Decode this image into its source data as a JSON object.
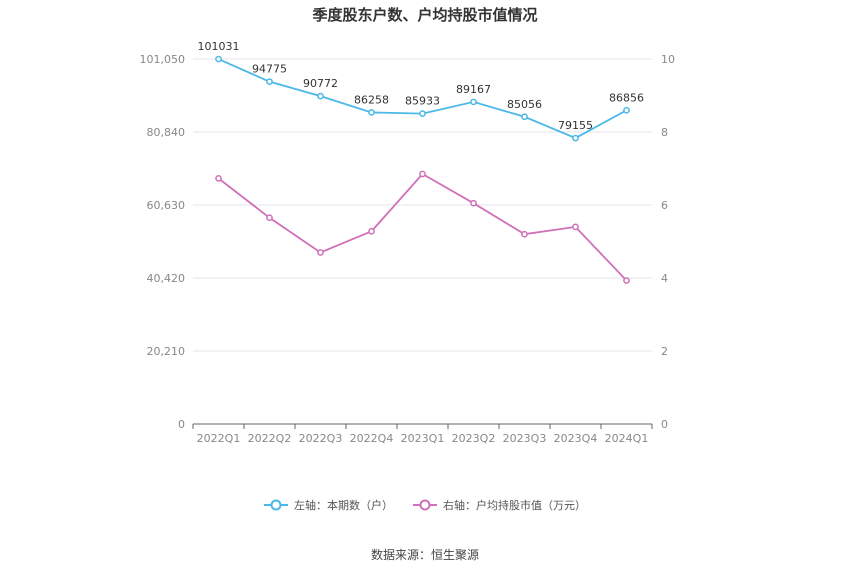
{
  "title": "季度股东户数、户均持股市值情况",
  "source": "数据来源：恒生聚源",
  "legend": [
    {
      "label": "左轴：本期数（户）",
      "color": "#4ab8e8"
    },
    {
      "label": "右轴：户均持股市值（万元）",
      "color": "#d070b8"
    }
  ],
  "chart_data": {
    "type": "line",
    "categories": [
      "2022Q1",
      "2022Q2",
      "2022Q3",
      "2022Q4",
      "2023Q1",
      "2023Q2",
      "2023Q3",
      "2023Q4",
      "2024Q1"
    ],
    "left_axis": {
      "min": 0,
      "max": 101050,
      "ticks": [
        "0",
        "20,210",
        "40,420",
        "60,630",
        "80,840",
        "101,050"
      ]
    },
    "right_axis": {
      "min": 0,
      "max": 10,
      "ticks": [
        "0",
        "2",
        "4",
        "6",
        "8",
        "10"
      ]
    },
    "grid": true,
    "series": [
      {
        "name": "左轴：本期数（户）",
        "axis": "left",
        "color": "#4ab8e8",
        "values": [
          101031,
          94775,
          90772,
          86258,
          85933,
          89167,
          85056,
          79155,
          86856
        ],
        "labels": [
          "101031",
          "94775",
          "90772",
          "86258",
          "85933",
          "89167",
          "85056",
          "79155",
          "86856"
        ]
      },
      {
        "name": "右轴：户均持股市值（万元）",
        "axis": "right",
        "color": "#d070b8",
        "values": [
          6.73,
          5.65,
          4.7,
          5.28,
          6.85,
          6.05,
          5.2,
          5.4,
          3.93
        ]
      }
    ]
  }
}
